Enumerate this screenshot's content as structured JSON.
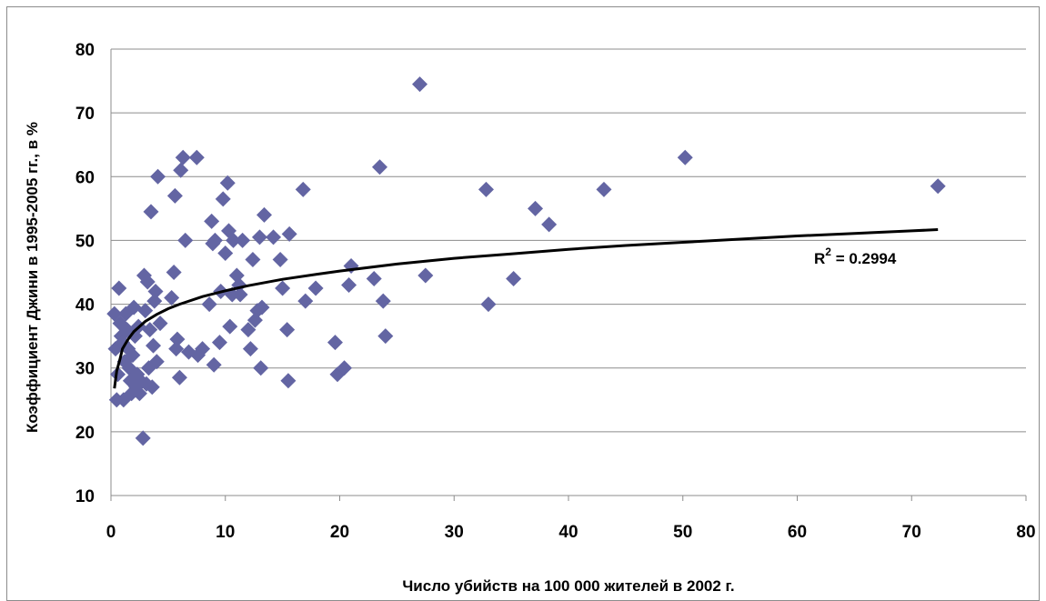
{
  "chart_data": {
    "type": "scatter",
    "xlabel": "Число убийств на 100 000 жителей в 2002 г.",
    "ylabel": "Коэффициент Джини в 1995-2005 гг., в %",
    "xlim": [
      0,
      80
    ],
    "ylim": [
      10,
      80
    ],
    "x_ticks": [
      "0",
      "10",
      "20",
      "30",
      "40",
      "50",
      "60",
      "70",
      "80"
    ],
    "y_ticks": [
      "10",
      "20",
      "30",
      "40",
      "50",
      "60",
      "70",
      "80"
    ],
    "grid": "horizontal",
    "legend": "none",
    "marker": "diamond",
    "marker_color": "#6365a3",
    "trendline": {
      "type": "logarithmic",
      "color": "#000000",
      "r2_base": "R",
      "r2_exp": "2",
      "r2_value": " = 0.2994",
      "points": [
        [
          0.3,
          26.8
        ],
        [
          0.5,
          29.5
        ],
        [
          0.8,
          31.5
        ],
        [
          1,
          33
        ],
        [
          1.5,
          34.5
        ],
        [
          2,
          35.7
        ],
        [
          3,
          37.3
        ],
        [
          4,
          38.4
        ],
        [
          5,
          39.3
        ],
        [
          6,
          40
        ],
        [
          8,
          41.2
        ],
        [
          10,
          42.1
        ],
        [
          12,
          42.9
        ],
        [
          15,
          43.9
        ],
        [
          18,
          44.7
        ],
        [
          20,
          45.2
        ],
        [
          25,
          46.3
        ],
        [
          30,
          47.2
        ],
        [
          35,
          47.9
        ],
        [
          40,
          48.6
        ],
        [
          45,
          49.2
        ],
        [
          50,
          49.7
        ],
        [
          55,
          50.2
        ],
        [
          60,
          50.7
        ],
        [
          65,
          51.1
        ],
        [
          70,
          51.5
        ],
        [
          72.3,
          51.7
        ]
      ]
    },
    "points": [
      [
        0.3,
        38.5
      ],
      [
        0.4,
        33
      ],
      [
        0.5,
        25
      ],
      [
        0.6,
        29
      ],
      [
        0.7,
        42.5
      ],
      [
        0.8,
        37
      ],
      [
        0.9,
        35
      ],
      [
        1,
        34
      ],
      [
        1.1,
        25
      ],
      [
        1.2,
        31
      ],
      [
        1.3,
        38.5
      ],
      [
        1.4,
        36
      ],
      [
        1.5,
        33
      ],
      [
        1.6,
        30
      ],
      [
        1.7,
        28
      ],
      [
        1.8,
        26
      ],
      [
        1.9,
        32
      ],
      [
        2,
        39.5
      ],
      [
        2.1,
        35
      ],
      [
        2.2,
        27
      ],
      [
        2.3,
        29
      ],
      [
        2.4,
        36.5
      ],
      [
        2.5,
        26
      ],
      [
        2.6,
        28
      ],
      [
        2.8,
        19
      ],
      [
        2.9,
        44.5
      ],
      [
        3,
        39
      ],
      [
        3.1,
        27.5
      ],
      [
        3.2,
        43.5
      ],
      [
        3.3,
        30
      ],
      [
        3.4,
        36
      ],
      [
        3.5,
        54.5
      ],
      [
        3.6,
        27
      ],
      [
        3.7,
        33.5
      ],
      [
        3.8,
        40.5
      ],
      [
        3.9,
        42
      ],
      [
        4,
        31
      ],
      [
        4.1,
        60
      ],
      [
        4.3,
        37
      ],
      [
        5.3,
        41
      ],
      [
        5.5,
        45
      ],
      [
        5.6,
        57
      ],
      [
        5.7,
        33
      ],
      [
        5.8,
        34.5
      ],
      [
        6,
        28.5
      ],
      [
        6.1,
        61
      ],
      [
        6.3,
        63
      ],
      [
        6.5,
        50
      ],
      [
        6.8,
        32.5
      ],
      [
        7.5,
        63
      ],
      [
        7.6,
        32
      ],
      [
        8,
        33
      ],
      [
        8.6,
        40
      ],
      [
        8.8,
        53
      ],
      [
        8.9,
        49.5
      ],
      [
        9,
        30.5
      ],
      [
        9.1,
        50
      ],
      [
        9.5,
        34
      ],
      [
        9.6,
        42
      ],
      [
        9.8,
        56.5
      ],
      [
        10,
        48
      ],
      [
        10.2,
        59
      ],
      [
        10.3,
        51.5
      ],
      [
        10.4,
        36.5
      ],
      [
        10.6,
        41.5
      ],
      [
        10.7,
        50
      ],
      [
        11,
        44.5
      ],
      [
        11.2,
        43
      ],
      [
        11.3,
        41.5
      ],
      [
        11.5,
        50
      ],
      [
        12,
        36
      ],
      [
        12.2,
        33
      ],
      [
        12.4,
        47
      ],
      [
        12.6,
        37.5
      ],
      [
        12.8,
        39
      ],
      [
        13,
        50.5
      ],
      [
        13.1,
        30
      ],
      [
        13.2,
        39.5
      ],
      [
        13.4,
        54
      ],
      [
        14.2,
        50.5
      ],
      [
        14.8,
        47
      ],
      [
        15,
        42.5
      ],
      [
        15.4,
        36
      ],
      [
        15.5,
        28
      ],
      [
        15.6,
        51
      ],
      [
        16.8,
        58
      ],
      [
        17,
        40.5
      ],
      [
        17.9,
        42.5
      ],
      [
        19.6,
        34
      ],
      [
        19.8,
        29
      ],
      [
        20.4,
        30
      ],
      [
        20.8,
        43
      ],
      [
        21,
        46
      ],
      [
        23,
        44
      ],
      [
        23.5,
        61.5
      ],
      [
        23.8,
        40.5
      ],
      [
        24,
        35
      ],
      [
        27,
        74.5
      ],
      [
        27.5,
        44.5
      ],
      [
        32.8,
        58
      ],
      [
        33,
        40
      ],
      [
        35.2,
        44
      ],
      [
        37.1,
        55
      ],
      [
        38.3,
        52.5
      ],
      [
        43.1,
        58
      ],
      [
        50.2,
        63
      ],
      [
        72.3,
        58.5
      ]
    ]
  }
}
